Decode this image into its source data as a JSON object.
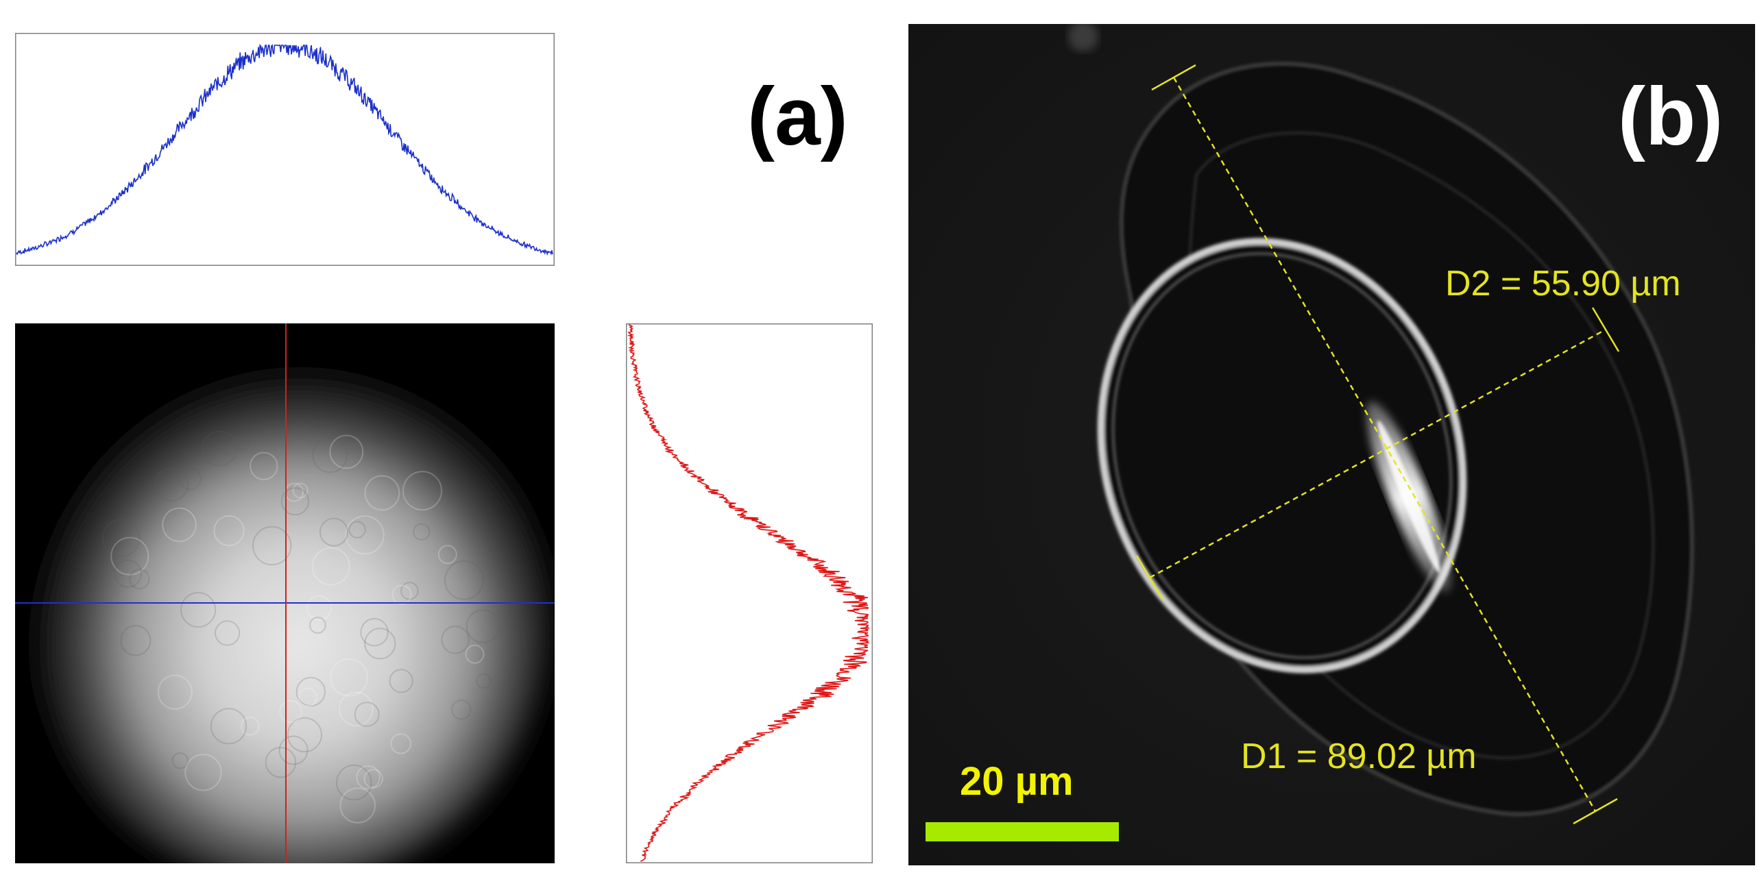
{
  "panel_a": {
    "label": "(a)",
    "horizontal_profile": {
      "color": "#1a2ecc"
    },
    "vertical_profile": {
      "color": "#e01414"
    },
    "crosshair": {
      "horizontal_color": "#2030d0",
      "vertical_color": "#d02020"
    }
  },
  "panel_b": {
    "label": "(b)",
    "d2_label": "D2 = 55.90 µm",
    "d1_label": "D1 = 89.02 µm",
    "scale_bar_label": "20 µm",
    "measure_color": "#e4e420",
    "scale_bar_color": "#a6ea00"
  }
}
